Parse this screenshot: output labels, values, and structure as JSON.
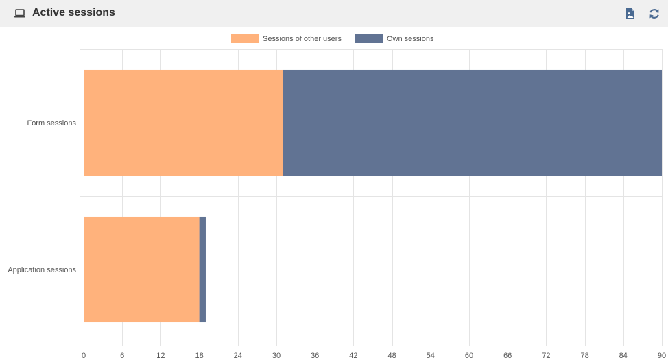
{
  "header": {
    "title": "Active sessions",
    "icons": [
      "laptop-icon",
      "export-image-icon",
      "refresh-icon"
    ]
  },
  "colors": {
    "others": "#ffb27c",
    "own": "#617393",
    "grid": "#e4e4e4",
    "axis": "#cfcfcf",
    "header_bg": "#f0f0f0"
  },
  "chart_data": {
    "type": "bar",
    "orientation": "horizontal",
    "stacked": true,
    "categories": [
      "Form sessions",
      "Application sessions"
    ],
    "series": [
      {
        "name": "Sessions of other users",
        "values": [
          31,
          18
        ]
      },
      {
        "name": "Own sessions",
        "values": [
          59,
          1
        ]
      }
    ],
    "xlim": [
      0,
      90
    ],
    "xticks": [
      "0",
      "6",
      "12",
      "18",
      "24",
      "30",
      "36",
      "42",
      "48",
      "54",
      "60",
      "66",
      "72",
      "78",
      "84",
      "90"
    ],
    "grid": true,
    "legend_position": "top-center"
  }
}
